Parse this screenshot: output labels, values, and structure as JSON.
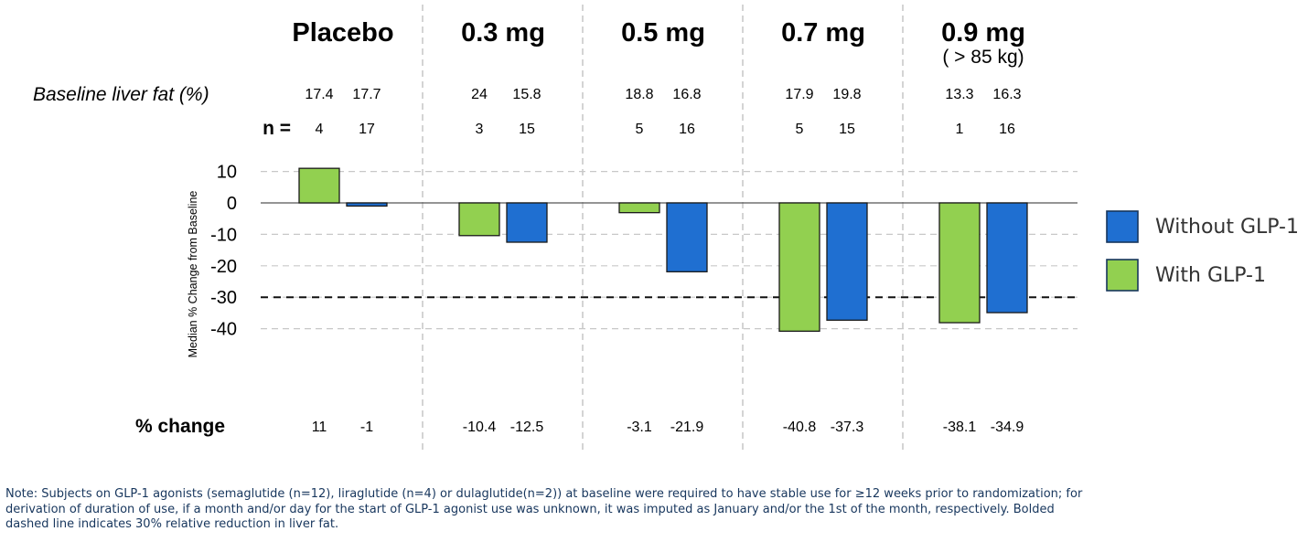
{
  "chart_data": {
    "type": "bar",
    "groups": [
      "Placebo",
      "0.3 mg",
      "0.5 mg",
      "0.7 mg",
      "0.9 mg"
    ],
    "group_sublabels": [
      "",
      "",
      "",
      "",
      "( > 85 kg)"
    ],
    "series": [
      {
        "name": "With GLP-1",
        "color": "#92d050",
        "values": [
          11,
          -10.4,
          -3.1,
          -40.8,
          -38.1
        ],
        "baseline": [
          "17.4",
          "24",
          "18.8",
          "17.9",
          "13.3"
        ],
        "n": [
          "4",
          "3",
          "5",
          "5",
          "1"
        ],
        "pct_label": [
          "11",
          "-10.4",
          "-3.1",
          "-40.8",
          "-38.1"
        ]
      },
      {
        "name": "Without GLP-1",
        "color": "#1f6fd1",
        "values": [
          -1,
          -12.5,
          -21.9,
          -37.3,
          -34.9
        ],
        "baseline": [
          "17.7",
          "15.8",
          "16.8",
          "19.8",
          "16.3"
        ],
        "n": [
          "17",
          "15",
          "16",
          "15",
          "16"
        ],
        "pct_label": [
          "-1",
          "-12.5",
          "-21.9",
          "-37.3",
          "-34.9"
        ]
      }
    ],
    "row_labels": {
      "baseline": "Baseline liver fat (%)",
      "n": "n =",
      "pct": "% change"
    },
    "ylabel": "Median % Change from Baseline",
    "yticks": [
      10,
      0,
      -10,
      -20,
      -30,
      -40
    ],
    "ylim": [
      -50,
      12
    ],
    "reference_line": -30,
    "legend_order": [
      "Without GLP-1",
      "With GLP-1"
    ],
    "legend_position": "right"
  },
  "note": [
    "Note: Subjects on GLP-1 agonists (semaglutide (n=12), liraglutide (n=4) or dulaglutide(n=2)) at baseline were required to have stable use for ≥12 weeks prior to randomization; for",
    "derivation of duration of use, if a month and/or day for the start of GLP-1 agonist use was unknown, it was imputed as January and/or the 1st of the month, respectively.  Bolded",
    "dashed line indicates 30% relative reduction in liver fat."
  ]
}
